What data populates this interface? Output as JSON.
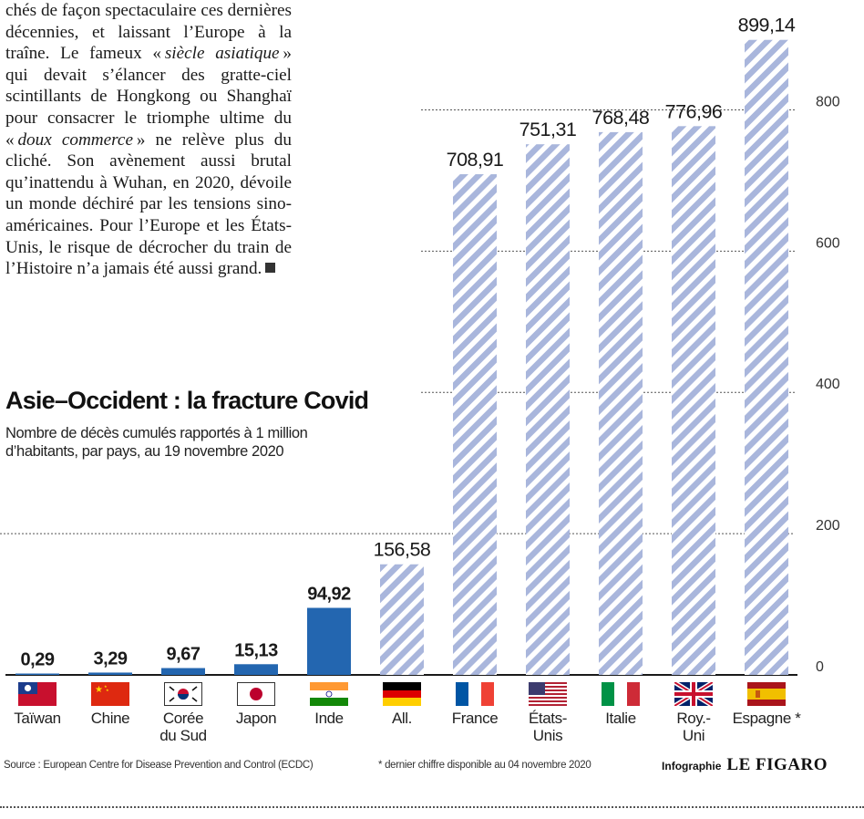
{
  "article": {
    "line1": "chés de façon spectaculaire ces dernières décennies, et laissant l’Europe à la traîne. Le fameux «",
    "em1": "siècle asiatique",
    "line2": "» qui devait s’élancer des gratte-ciel scintillants de Hongkong ou Shanghaï pour consacrer le triomphe ultime du «",
    "em2": "doux commerce",
    "line3": "» ne relève plus du cliché. Son avènement aussi brutal qu’inattendu à Wuhan, en 2020, dévoile un monde déchiré par les tensions sino-américaines. Pour l’Europe et les États-Unis, le risque de décrocher du train de l’Histoire n’a jamais été aussi grand."
  },
  "chart_data": {
    "type": "bar",
    "title": "Asie–Occident : la fracture Covid",
    "subtitle": "Nombre de décès cumulés rapportés à 1 million d’habitants, par pays, au 19 novembre 2020",
    "categories": [
      "Taïwan",
      "Chine",
      "Corée du Sud",
      "Japon",
      "Inde",
      "All.",
      "France",
      "États-Unis",
      "Italie",
      "Roy.-Uni",
      "Espagne *"
    ],
    "values": [
      0.29,
      3.29,
      9.67,
      15.13,
      94.92,
      156.58,
      708.91,
      751.31,
      768.48,
      776.96,
      899.14
    ],
    "value_labels": [
      "0,29",
      "3,29",
      "9,67",
      "15,13",
      "94,92",
      "156,58",
      "708,91",
      "751,31",
      "768,48",
      "776,96",
      "899,14"
    ],
    "groups": [
      "asia",
      "asia",
      "asia",
      "asia",
      "asia",
      "west",
      "west",
      "west",
      "west",
      "west",
      "west"
    ],
    "ylim": [
      0,
      900
    ],
    "yticks": [
      0,
      200,
      400,
      600,
      800
    ],
    "ytick_labels": [
      "0",
      "200",
      "400",
      "600",
      "800"
    ],
    "y_axis_position": "right",
    "grid": true,
    "colors": {
      "asia": "#2366b0",
      "west_stripe": "#a9b6dc",
      "west_background": "#ffffff",
      "grid": "#555555"
    }
  },
  "flags": [
    "taiwan-flag",
    "china-flag",
    "south-korea-flag",
    "japan-flag",
    "india-flag",
    "germany-flag",
    "france-flag",
    "usa-flag",
    "italy-flag",
    "uk-flag",
    "spain-flag"
  ],
  "footer": {
    "source": "Source : European Centre for Disease Prevention and Control (ECDC)",
    "footnote": "* dernier chiffre disponible au 04 novembre 2020",
    "credit_label": "Infographie",
    "credit_brand": "LE FIGARO"
  }
}
